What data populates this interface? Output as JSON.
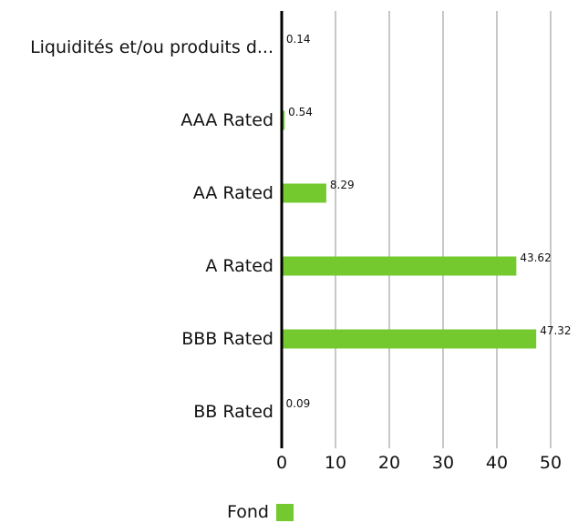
{
  "chart_data": {
    "type": "bar",
    "orientation": "horizontal",
    "categories": [
      "Liquidités et/ou produits d...",
      "AAA Rated",
      "AA Rated",
      "A Rated",
      "BBB Rated",
      "BB Rated"
    ],
    "series": [
      {
        "name": "Fond",
        "color": "#73c92d",
        "values": [
          0.14,
          0.54,
          8.29,
          43.62,
          47.32,
          0.09
        ],
        "value_labels": [
          "0.14",
          "0.54",
          "8.29",
          "43.62",
          "47.32",
          "0.09"
        ]
      }
    ],
    "xlim": [
      0,
      50
    ],
    "x_ticks": [
      0,
      10,
      20,
      30,
      40,
      50
    ],
    "grid": true,
    "legend_position": "bottom"
  }
}
